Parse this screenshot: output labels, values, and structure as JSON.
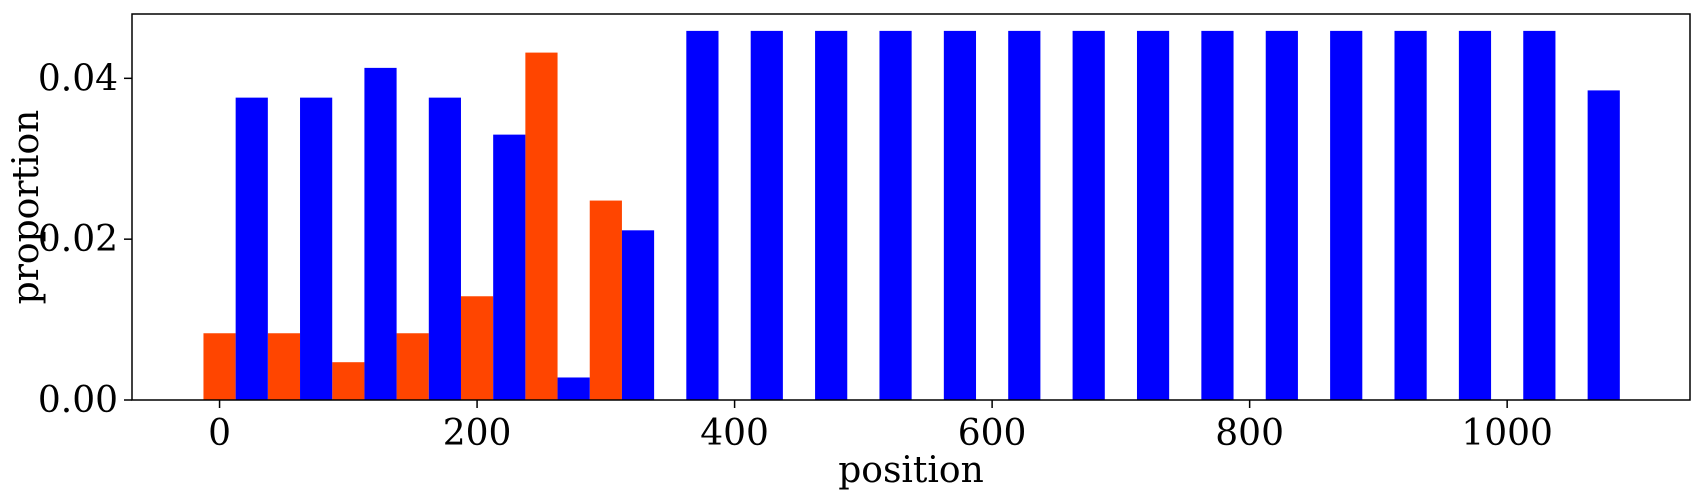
{
  "chart_data": {
    "type": "bar",
    "xlabel": "position",
    "ylabel": "proportion",
    "xlim": [
      -68,
      1142
    ],
    "ylim": [
      0,
      0.048
    ],
    "xticks": [
      0,
      200,
      400,
      600,
      800,
      1000
    ],
    "yticks": [
      0.0,
      0.02,
      0.04
    ],
    "ytick_labels": [
      "0.00",
      "0.02",
      "0.04"
    ],
    "bar_width": 25,
    "colors": {
      "orange": "#ff4500",
      "blue": "#0000ff"
    },
    "series": [
      {
        "color": "#ff4500",
        "x": [
          0,
          50,
          100,
          150,
          200,
          250,
          300
        ],
        "values": [
          0.0083,
          0.0083,
          0.0047,
          0.0083,
          0.0129,
          0.0432,
          0.0248
        ]
      },
      {
        "color": "#0000ff",
        "x": [
          25,
          75,
          125,
          175,
          225,
          275,
          325,
          375,
          425,
          475,
          525,
          575,
          625,
          675,
          725,
          775,
          825,
          875,
          925,
          975,
          1025,
          1075
        ],
        "values": [
          0.0376,
          0.0376,
          0.0413,
          0.0376,
          0.033,
          0.0028,
          0.0211,
          0.0459,
          0.0459,
          0.0459,
          0.0459,
          0.0459,
          0.0459,
          0.0459,
          0.0459,
          0.0459,
          0.0459,
          0.0459,
          0.0459,
          0.0459,
          0.0459,
          0.0385
        ]
      }
    ]
  }
}
